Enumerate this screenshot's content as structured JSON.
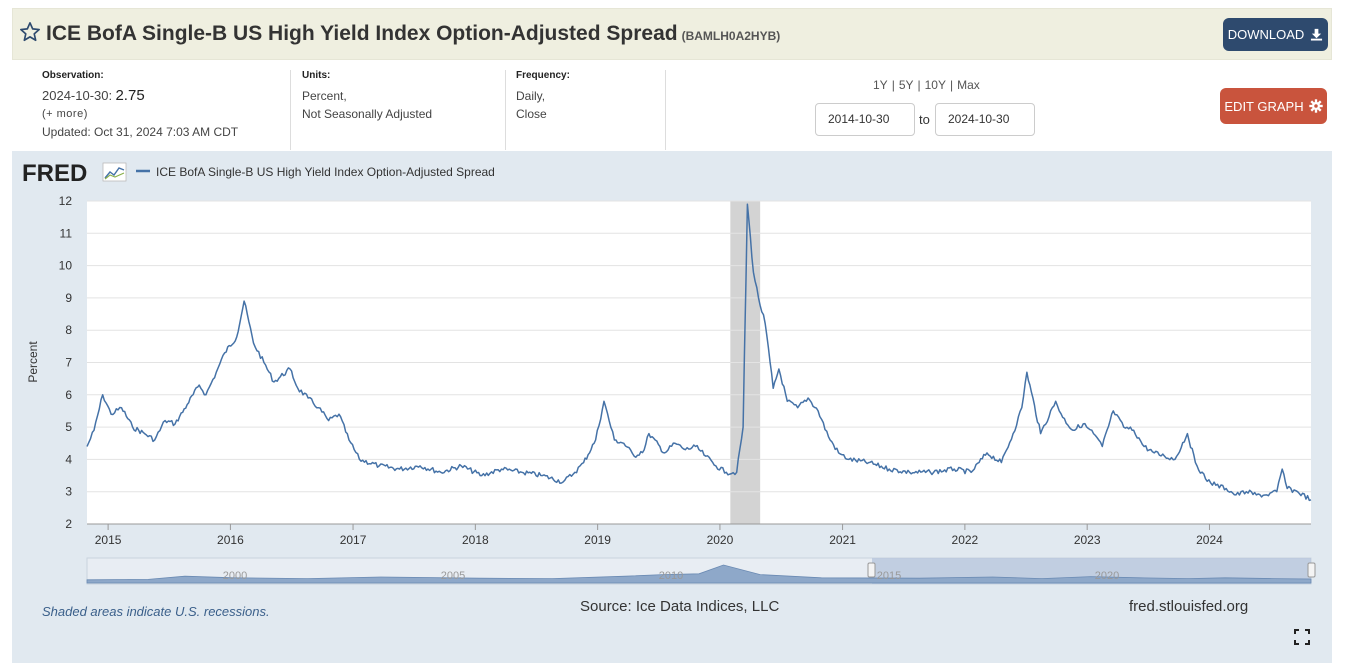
{
  "header": {
    "title": "ICE BofA Single-B US High Yield Index Option-Adjusted Spread",
    "series_code": "(BAMLH0A2HYB)",
    "download_label": "DOWNLOAD"
  },
  "observation": {
    "label": "Observation:",
    "date": "2024-10-30:",
    "value": "2.75",
    "more": "(+ more)",
    "updated": "Updated: Oct 31, 2024 7:03 AM CDT"
  },
  "units": {
    "label": "Units:",
    "line1": "Percent,",
    "line2": "Not Seasonally Adjusted"
  },
  "frequency": {
    "label": "Frequency:",
    "line1": "Daily,",
    "line2": "Close"
  },
  "range": {
    "buttons": [
      "1Y",
      "5Y",
      "10Y",
      "Max"
    ],
    "start": "2014-10-30",
    "end": "2024-10-30",
    "to_label": "to"
  },
  "edit_graph_label": "EDIT GRAPH",
  "icons": {
    "favorite": "star-icon",
    "download": "download-icon",
    "edit": "gear-icon",
    "fullscreen": "fullscreen-icon"
  },
  "colors": {
    "line": "#4572a7",
    "recession": "#d3d3d3",
    "download_btn": "#2e4a6e",
    "edit_btn": "#c9543d"
  },
  "footer": {
    "recession_note": "Shaded areas indicate U.S. recessions.",
    "source": "Source: Ice Data Indices, LLC",
    "site": "fred.stlouisfed.org"
  },
  "chart_data": {
    "type": "line",
    "brand": "FRED",
    "legend": "ICE BofA Single-B US High Yield Index Option-Adjusted Spread",
    "ylabel": "Percent",
    "ylim": [
      2,
      12
    ],
    "yticks": [
      2,
      3,
      4,
      5,
      6,
      7,
      8,
      9,
      10,
      11,
      12
    ],
    "xlim": [
      "2014-10-30",
      "2024-10-30"
    ],
    "xticks": [
      "2015",
      "2016",
      "2017",
      "2018",
      "2019",
      "2020",
      "2021",
      "2022",
      "2023",
      "2024"
    ],
    "recessions": [
      {
        "start": "2020-02-01",
        "end": "2020-04-30"
      }
    ],
    "navigator_labels": [
      "2000",
      "2005",
      "2010",
      "2015",
      "2020"
    ],
    "series": [
      {
        "name": "ICE BofA Single-B US High Yield Index Option-Adjusted Spread",
        "x": [
          "2014-10-30",
          "2014-11-20",
          "2014-12-16",
          "2015-01-10",
          "2015-02-10",
          "2015-03-15",
          "2015-04-20",
          "2015-05-20",
          "2015-06-20",
          "2015-07-20",
          "2015-08-25",
          "2015-09-30",
          "2015-10-20",
          "2015-11-20",
          "2015-12-15",
          "2016-01-20",
          "2016-02-11",
          "2016-03-10",
          "2016-04-10",
          "2016-05-10",
          "2016-06-27",
          "2016-07-20",
          "2016-08-20",
          "2016-09-20",
          "2016-10-20",
          "2016-11-20",
          "2016-12-20",
          "2017-01-20",
          "2017-03-20",
          "2017-05-20",
          "2017-07-20",
          "2017-09-20",
          "2017-11-20",
          "2018-01-20",
          "2018-03-20",
          "2018-05-20",
          "2018-07-20",
          "2018-09-20",
          "2018-10-25",
          "2018-11-20",
          "2018-12-26",
          "2019-01-20",
          "2019-02-20",
          "2019-03-20",
          "2019-04-20",
          "2019-05-20",
          "2019-06-03",
          "2019-07-20",
          "2019-08-20",
          "2019-09-20",
          "2019-10-20",
          "2019-11-20",
          "2019-12-20",
          "2020-01-20",
          "2020-02-20",
          "2020-03-10",
          "2020-03-23",
          "2020-04-10",
          "2020-04-25",
          "2020-05-15",
          "2020-06-08",
          "2020-06-25",
          "2020-07-20",
          "2020-08-20",
          "2020-09-20",
          "2020-10-20",
          "2020-11-20",
          "2020-12-20",
          "2021-01-20",
          "2021-03-20",
          "2021-05-20",
          "2021-07-20",
          "2021-09-20",
          "2021-11-30",
          "2022-01-20",
          "2022-03-08",
          "2022-04-20",
          "2022-05-25",
          "2022-06-20",
          "2022-07-05",
          "2022-08-15",
          "2022-09-29",
          "2022-10-20",
          "2022-11-20",
          "2022-12-20",
          "2023-01-20",
          "2023-02-15",
          "2023-03-20",
          "2023-04-20",
          "2023-05-20",
          "2023-06-20",
          "2023-07-20",
          "2023-08-20",
          "2023-09-20",
          "2023-10-27",
          "2023-11-20",
          "2023-12-20",
          "2024-01-20",
          "2024-02-20",
          "2024-03-20",
          "2024-04-20",
          "2024-05-20",
          "2024-06-20",
          "2024-07-20",
          "2024-08-05",
          "2024-08-20",
          "2024-09-20",
          "2024-10-30"
        ],
        "values": [
          4.4,
          4.9,
          6.0,
          5.4,
          5.6,
          5.0,
          4.8,
          4.6,
          5.2,
          5.1,
          5.7,
          6.3,
          6.0,
          6.7,
          7.3,
          7.8,
          8.9,
          7.6,
          7.0,
          6.4,
          6.8,
          6.2,
          5.9,
          5.6,
          5.2,
          5.4,
          4.6,
          4.0,
          3.8,
          3.7,
          3.8,
          3.6,
          3.8,
          3.5,
          3.7,
          3.6,
          3.5,
          3.3,
          3.6,
          3.9,
          4.6,
          5.8,
          4.6,
          4.5,
          4.1,
          4.3,
          4.8,
          4.2,
          4.5,
          4.3,
          4.4,
          4.1,
          3.8,
          3.6,
          3.6,
          5.0,
          11.9,
          9.8,
          9.0,
          8.2,
          6.2,
          6.8,
          5.8,
          5.6,
          5.9,
          5.5,
          4.7,
          4.2,
          4.0,
          3.9,
          3.7,
          3.6,
          3.6,
          3.7,
          3.6,
          4.2,
          3.9,
          4.8,
          5.6,
          6.7,
          4.8,
          5.8,
          5.3,
          4.9,
          5.1,
          4.8,
          4.4,
          5.5,
          5.0,
          4.9,
          4.4,
          4.2,
          4.1,
          4.0,
          4.8,
          3.9,
          3.4,
          3.2,
          3.1,
          2.9,
          3.0,
          2.9,
          2.9,
          3.0,
          3.7,
          3.1,
          3.0,
          2.75
        ]
      }
    ]
  }
}
